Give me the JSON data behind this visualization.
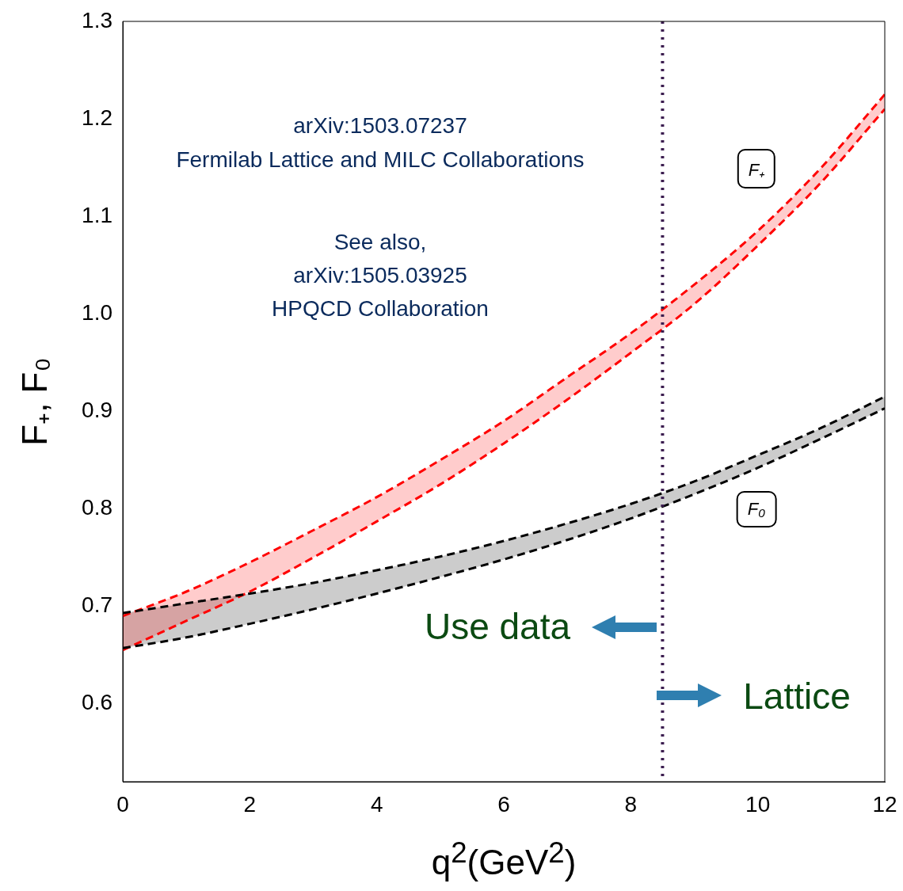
{
  "chart_data": {
    "type": "line",
    "xlabel": "q$^{2}$(GeV$^{2}$)",
    "ylabel": "F₊, F₀",
    "xlim": [
      0,
      12
    ],
    "xticks": [
      0,
      2,
      4,
      6,
      8,
      10,
      12
    ],
    "ylim": [
      0.52,
      1.3
    ],
    "yticks": [
      0.6,
      0.7,
      0.8,
      0.9,
      {
        "value": 1,
        "label": "1.0"
      },
      1.1,
      1.2,
      1.3
    ],
    "x": [
      0,
      1,
      2,
      3,
      4,
      5,
      6,
      7,
      8,
      9,
      10,
      11,
      12
    ],
    "line_style": "dashed",
    "marker": "none",
    "grid": false,
    "series": [
      {
        "name": "F₊",
        "color": "#ff0000",
        "values": [
          0.69,
          0.715,
          0.745,
          0.778,
          0.812,
          0.85,
          0.89,
          0.935,
          0.98,
          1.03,
          1.085,
          1.15,
          1.225
        ],
        "upper": [
          0.69,
          0.715,
          0.745,
          0.778,
          0.812,
          0.85,
          0.89,
          0.935,
          0.98,
          1.03,
          1.085,
          1.15,
          1.225
        ],
        "lower": [
          0.655,
          0.685,
          0.715,
          0.75,
          0.787,
          0.825,
          0.867,
          0.912,
          0.96,
          1.01,
          1.07,
          1.135,
          1.21
        ]
      },
      {
        "color": "#ff0000",
        "values": [
          0.655,
          0.685,
          0.715,
          0.75,
          0.787,
          0.825,
          0.867,
          0.912,
          0.96,
          1.01,
          1.07,
          1.135,
          1.21
        ]
      },
      {
        "name": "F₀",
        "color": "#000000",
        "values": [
          0.693,
          0.703,
          0.713,
          0.724,
          0.737,
          0.751,
          0.767,
          0.785,
          0.805,
          0.828,
          0.855,
          0.883,
          0.915
        ],
        "upper": [
          0.693,
          0.703,
          0.713,
          0.724,
          0.737,
          0.751,
          0.767,
          0.785,
          0.805,
          0.828,
          0.855,
          0.883,
          0.915
        ],
        "lower": [
          0.657,
          0.668,
          0.682,
          0.697,
          0.713,
          0.73,
          0.748,
          0.768,
          0.79,
          0.815,
          0.842,
          0.872,
          0.903
        ]
      },
      {
        "color": "#000000",
        "values": [
          0.657,
          0.668,
          0.682,
          0.697,
          0.713,
          0.73,
          0.748,
          0.768,
          0.79,
          0.815,
          0.842,
          0.872,
          0.903
        ]
      }
    ],
    "ref_lines": [
      {
        "axis": "x",
        "value": 8.5,
        "color": "#3c1e50",
        "line_style": "dotted"
      }
    ],
    "annotations": [
      "arXiv:1503.07237",
      "Fermilab Lattice and MILC Collaborations",
      "See also,",
      "arXiv:1505.03925",
      "HPQCD Collaboration",
      "Use data",
      "Lattice"
    ]
  }
}
